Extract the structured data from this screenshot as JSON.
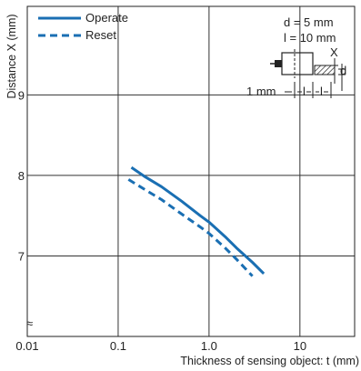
{
  "chart_data": {
    "type": "line",
    "xlabel": "Thickness of sensing object: t (mm)",
    "ylabel": "Distance X (mm)",
    "x_scale": "log",
    "xlim": [
      0.01,
      40
    ],
    "ylim": [
      6,
      10.1
    ],
    "x_ticks": [
      {
        "value": 0.01,
        "label": "0.01"
      },
      {
        "value": 0.1,
        "label": "0.1"
      },
      {
        "value": 1,
        "label": "1.0"
      },
      {
        "value": 10,
        "label": "10"
      }
    ],
    "y_ticks": [
      {
        "value": 7,
        "label": "7"
      },
      {
        "value": 8,
        "label": "8"
      },
      {
        "value": 9,
        "label": "9"
      }
    ],
    "axis_break_symbol": "≈",
    "grid": true,
    "legend_position": "top-left",
    "series": [
      {
        "name": "Operate",
        "color": "#1a6fb3",
        "dash": "solid",
        "x": [
          0.14,
          0.2,
          0.3,
          0.5,
          0.8,
          1.0,
          1.5,
          2.0,
          3.0,
          4.0
        ],
        "y": [
          8.1,
          7.98,
          7.86,
          7.68,
          7.5,
          7.42,
          7.24,
          7.1,
          6.92,
          6.78
        ]
      },
      {
        "name": "Reset",
        "color": "#1a6fb3",
        "dash": "dashed",
        "x": [
          0.13,
          0.2,
          0.3,
          0.5,
          0.8,
          1.0,
          1.5,
          2.0,
          3.0
        ],
        "y": [
          7.95,
          7.82,
          7.7,
          7.52,
          7.36,
          7.28,
          7.1,
          6.96,
          6.75
        ]
      }
    ],
    "inset": {
      "d_label": "d = 5 mm",
      "l_label": "l = 10 mm",
      "x_mark": "X",
      "d_mark": "d",
      "l_mark": "l",
      "one_mm_label": "1 mm"
    }
  }
}
